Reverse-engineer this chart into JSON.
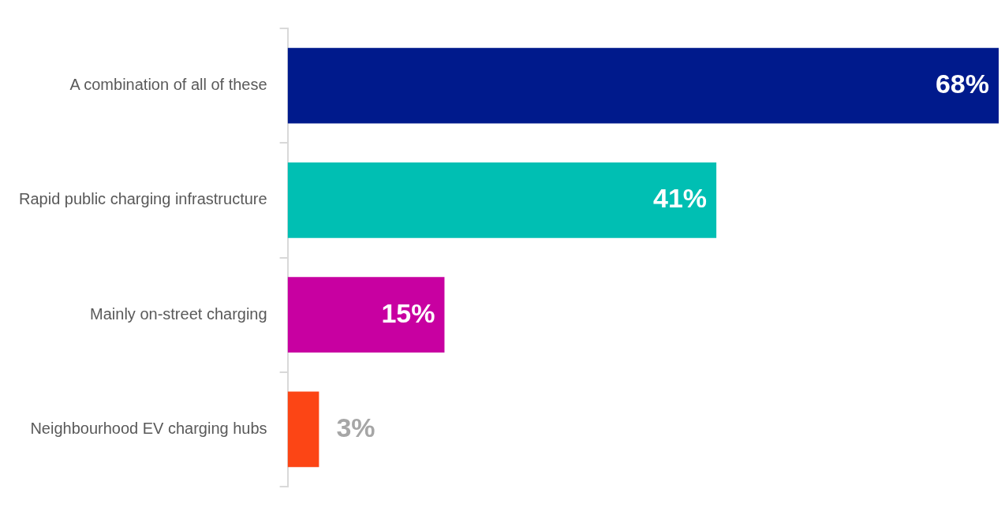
{
  "chart_data": {
    "type": "bar",
    "orientation": "horizontal",
    "categories": [
      "A combination of all of these",
      "Rapid public charging infrastructure",
      "Mainly on-street charging",
      "Neighbourhood EV charging hubs"
    ],
    "values": [
      68,
      41,
      15,
      3
    ],
    "value_labels": [
      "68%",
      "41%",
      "15%",
      "3%"
    ],
    "colors": [
      "#001a8c",
      "#00bfb3",
      "#c800a1",
      "#fc4515"
    ],
    "tick_labels": "y"
  }
}
